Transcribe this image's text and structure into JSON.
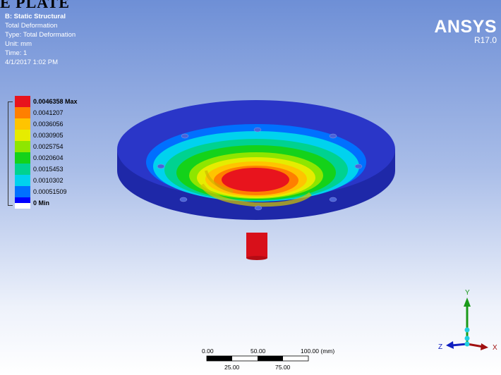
{
  "view_title": "E PLATE",
  "info": {
    "analysis": "B: Static Structural",
    "result": "Total Deformation",
    "type": "Type: Total Deformation",
    "unit": "Unit: mm",
    "time": "Time: 1",
    "date": "4/1/2017 1:02 PM"
  },
  "brand": {
    "name": "ANSYS",
    "version": "R17.0"
  },
  "legend": {
    "entries": [
      {
        "label": "0.0046358 Max",
        "color": "#e8141d",
        "bold": true
      },
      {
        "label": "0.0041207",
        "color": "#ff7f00"
      },
      {
        "label": "0.0036056",
        "color": "#ffc400"
      },
      {
        "label": "0.0030905",
        "color": "#e6ec00"
      },
      {
        "label": "0.0025754",
        "color": "#8ee600"
      },
      {
        "label": "0.0020604",
        "color": "#14d21a"
      },
      {
        "label": "0.0015453",
        "color": "#00d290"
      },
      {
        "label": "0.0010302",
        "color": "#00d2ee"
      },
      {
        "label": "0.00051509",
        "color": "#0070ff"
      },
      {
        "label": "0 Min",
        "color": "#0000ff",
        "bold": true
      }
    ]
  },
  "scale_bar": {
    "top_labels": [
      "0.00",
      "50.00",
      "100.00 (mm)"
    ],
    "bottom_labels": [
      "25.00",
      "75.00"
    ]
  },
  "triad": {
    "y_label": "Y",
    "x_label": "X",
    "z_label": "Z"
  },
  "colors": {
    "viewport_top": "#6e8fd6",
    "viewport_bottom": "#ffffff",
    "disk_blue": "#2a36c8",
    "max_red": "#e8141d"
  }
}
